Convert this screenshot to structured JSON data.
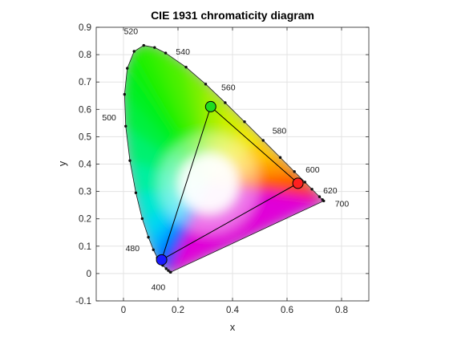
{
  "chart_data": {
    "type": "scatter",
    "title": "CIE 1931 chromaticity diagram",
    "xlabel": "x",
    "ylabel": "y",
    "xlim": [
      -0.1,
      0.9
    ],
    "ylim": [
      -0.1,
      0.9
    ],
    "x_ticks": [
      "0",
      "0.2",
      "0.4",
      "0.6",
      "0.8"
    ],
    "x_tick_values": [
      0,
      0.2,
      0.4,
      0.6,
      0.8
    ],
    "y_ticks": [
      "-0.1",
      "0",
      "0.1",
      "0.2",
      "0.3",
      "0.4",
      "0.5",
      "0.6",
      "0.7",
      "0.8",
      "0.9"
    ],
    "y_tick_values": [
      -0.1,
      0,
      0.1,
      0.2,
      0.3,
      0.4,
      0.5,
      0.6,
      0.7,
      0.8,
      0.9
    ],
    "grid": true,
    "spectral_locus": [
      {
        "nm": 400,
        "x": 0.1733,
        "y": 0.0048
      },
      {
        "nm": 420,
        "x": 0.1714,
        "y": 0.0051
      },
      {
        "nm": 440,
        "x": 0.1644,
        "y": 0.0109
      },
      {
        "nm": 450,
        "x": 0.1566,
        "y": 0.0177
      },
      {
        "nm": 460,
        "x": 0.144,
        "y": 0.0297
      },
      {
        "nm": 470,
        "x": 0.1241,
        "y": 0.0578
      },
      {
        "nm": 475,
        "x": 0.1096,
        "y": 0.0868
      },
      {
        "nm": 480,
        "x": 0.0913,
        "y": 0.1327
      },
      {
        "nm": 485,
        "x": 0.0687,
        "y": 0.2007
      },
      {
        "nm": 490,
        "x": 0.0454,
        "y": 0.295
      },
      {
        "nm": 495,
        "x": 0.0235,
        "y": 0.4127
      },
      {
        "nm": 500,
        "x": 0.0082,
        "y": 0.5384
      },
      {
        "nm": 505,
        "x": 0.0039,
        "y": 0.6548
      },
      {
        "nm": 510,
        "x": 0.0139,
        "y": 0.7502
      },
      {
        "nm": 515,
        "x": 0.0389,
        "y": 0.812
      },
      {
        "nm": 520,
        "x": 0.0743,
        "y": 0.8338
      },
      {
        "nm": 525,
        "x": 0.1142,
        "y": 0.8262
      },
      {
        "nm": 530,
        "x": 0.1547,
        "y": 0.8059
      },
      {
        "nm": 540,
        "x": 0.2296,
        "y": 0.7543
      },
      {
        "nm": 550,
        "x": 0.3016,
        "y": 0.6923
      },
      {
        "nm": 560,
        "x": 0.3731,
        "y": 0.6245
      },
      {
        "nm": 570,
        "x": 0.4441,
        "y": 0.5547
      },
      {
        "nm": 580,
        "x": 0.5125,
        "y": 0.4866
      },
      {
        "nm": 590,
        "x": 0.5752,
        "y": 0.4242
      },
      {
        "nm": 600,
        "x": 0.627,
        "y": 0.3725
      },
      {
        "nm": 610,
        "x": 0.6658,
        "y": 0.334
      },
      {
        "nm": 620,
        "x": 0.6915,
        "y": 0.3083
      },
      {
        "nm": 640,
        "x": 0.719,
        "y": 0.2809
      },
      {
        "nm": 660,
        "x": 0.73,
        "y": 0.27
      },
      {
        "nm": 700,
        "x": 0.7347,
        "y": 0.2653
      }
    ],
    "wavelength_labels": [
      {
        "text": "400",
        "nm": 400
      },
      {
        "text": "480",
        "nm": 480
      },
      {
        "text": "500",
        "nm": 500
      },
      {
        "text": "520",
        "nm": 520
      },
      {
        "text": "540",
        "nm": 540
      },
      {
        "text": "560",
        "nm": 560
      },
      {
        "text": "580",
        "nm": 580
      },
      {
        "text": "600",
        "nm": 600
      },
      {
        "text": "620",
        "nm": 620
      },
      {
        "text": "700",
        "nm": 700
      }
    ],
    "gamut_triangle": [
      {
        "x": 0.64,
        "y": 0.33,
        "color": "#ff2020"
      },
      {
        "x": 0.32,
        "y": 0.61,
        "color": "#1fdc1f"
      },
      {
        "x": 0.14,
        "y": 0.05,
        "color": "#1a1aff"
      }
    ],
    "colors": {
      "grid": "#e3e3e3",
      "axis": "#262626",
      "triangle_line": "#000000"
    }
  }
}
